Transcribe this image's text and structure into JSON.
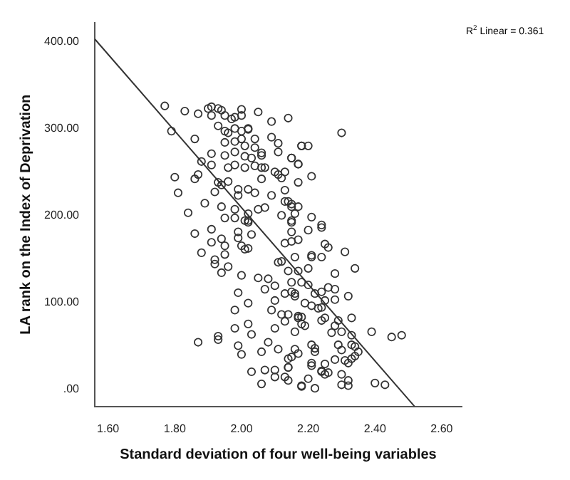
{
  "chart_data": {
    "type": "scatter",
    "xlabel": "Standard deviation of four well-being variables",
    "ylabel": "LA rank on the Index of Deprivation",
    "annotations": [
      "R$^{2}$ Linear = 0.361"
    ],
    "xlim": [
      1.56,
      2.66
    ],
    "ylim": [
      -20,
      422
    ],
    "xticks": [
      {
        "value": 1.6,
        "label": "1.60"
      },
      {
        "value": 1.8,
        "label": "1.80"
      },
      {
        "value": 2.0,
        "label": "2.00"
      },
      {
        "value": 2.2,
        "label": "2.20"
      },
      {
        "value": 2.4,
        "label": "2.40"
      },
      {
        "value": 2.6,
        "label": "2.60"
      }
    ],
    "yticks": [
      {
        "value": 0,
        "label": ".00"
      },
      {
        "value": 100,
        "label": "100.00"
      },
      {
        "value": 200,
        "label": "200.00"
      },
      {
        "value": 300,
        "label": "300.00"
      },
      {
        "value": 400,
        "label": "400.00"
      }
    ],
    "grid": false,
    "legend": false,
    "marker": "circle",
    "series": [
      {
        "type": "scatter",
        "color": "#333333",
        "x": [
          1.77,
          1.83,
          1.87,
          1.9,
          1.91,
          1.93,
          1.94,
          1.91,
          1.95,
          1.97,
          1.98,
          2.0,
          2.0,
          2.02,
          2.05,
          2.09,
          2.14,
          1.79,
          1.86,
          1.93,
          1.95,
          1.96,
          1.98,
          2.0,
          2.02,
          1.95,
          1.98,
          2.0,
          2.01,
          2.04,
          2.04,
          2.06,
          2.09,
          2.11,
          2.11,
          2.15,
          2.17,
          2.18,
          1.91,
          1.95,
          1.98,
          2.01,
          2.03,
          2.06,
          2.07,
          2.1,
          2.11,
          2.13,
          1.88,
          1.91,
          1.96,
          1.98,
          2.01,
          2.04,
          2.06,
          1.8,
          1.86,
          1.87,
          1.93,
          1.94,
          1.96,
          1.99,
          2.02,
          2.04,
          2.06,
          2.09,
          2.12,
          2.13,
          1.81,
          1.92,
          1.99,
          1.89,
          1.94,
          1.98,
          2.02,
          2.05,
          2.07,
          2.13,
          2.15,
          2.16,
          1.84,
          1.95,
          1.98,
          2.02,
          2.12,
          2.15,
          2.3,
          2.18,
          2.2,
          2.15,
          2.17,
          2.17,
          2.21,
          2.14,
          2.15,
          2.17,
          2.21,
          2.24,
          1.86,
          1.88,
          1.91,
          1.91,
          1.92,
          1.92,
          1.94,
          1.94,
          1.95,
          1.95,
          1.96,
          1.99,
          1.99,
          2.0,
          2.0,
          2.01,
          2.02,
          2.03,
          2.01,
          2.02,
          1.98,
          1.99,
          2.02,
          1.98,
          2.02,
          2.03,
          1.99,
          2.0,
          1.87,
          1.93,
          1.93,
          2.03,
          2.06,
          2.07,
          2.06,
          2.08,
          2.1,
          2.11,
          2.1,
          2.1,
          2.14,
          2.14,
          2.15,
          2.16,
          2.18,
          2.05,
          2.07,
          2.08,
          2.1,
          2.11,
          2.1,
          2.09,
          2.12,
          2.14,
          2.13,
          2.16,
          2.12,
          2.14,
          2.15,
          2.16,
          2.17,
          2.24,
          2.2,
          2.25,
          2.26,
          2.31,
          2.24,
          2.21,
          2.21,
          2.34,
          2.28,
          2.26,
          2.28,
          2.32,
          2.24,
          2.25,
          2.22,
          2.28,
          2.21,
          2.24,
          2.23,
          2.19,
          2.33,
          2.29,
          2.25,
          2.24,
          2.28,
          2.27,
          2.3,
          2.33,
          2.39,
          2.45,
          2.48,
          2.29,
          2.3,
          2.33,
          2.34,
          2.35,
          2.31,
          2.33,
          2.34,
          2.32,
          2.28,
          2.25,
          2.26,
          2.24,
          2.3,
          2.3,
          2.32,
          2.32,
          2.4,
          2.43,
          2.22,
          2.18,
          2.21,
          2.22,
          2.22,
          2.18,
          2.18,
          2.19,
          2.17,
          2.17,
          2.14,
          2.14,
          2.13,
          2.21,
          2.21,
          2.2,
          2.25,
          2.24,
          2.16,
          2.17,
          2.18,
          2.2,
          2.2,
          2.15,
          2.13,
          2.16,
          2.13,
          2.15,
          2.17,
          2.15,
          2.15
        ],
        "values": [
          326,
          320,
          317,
          323,
          325,
          323,
          321,
          315,
          315,
          311,
          313,
          322,
          315,
          300,
          319,
          308,
          312,
          297,
          288,
          303,
          297,
          295,
          300,
          297,
          299,
          284,
          285,
          288,
          280,
          288,
          278,
          272,
          290,
          283,
          273,
          266,
          259,
          280,
          271,
          269,
          273,
          268,
          266,
          269,
          255,
          250,
          247,
          250,
          262,
          258,
          255,
          258,
          255,
          257,
          255,
          244,
          242,
          247,
          238,
          235,
          239,
          230,
          230,
          226,
          242,
          223,
          243,
          229,
          226,
          227,
          223,
          214,
          210,
          207,
          202,
          207,
          209,
          216,
          210,
          202,
          203,
          197,
          197,
          194,
          200,
          194,
          295,
          280,
          280,
          266,
          259,
          238,
          245,
          216,
          213,
          210,
          198,
          189,
          179,
          157,
          184,
          169,
          149,
          144,
          134,
          173,
          165,
          155,
          141,
          181,
          174,
          131,
          165,
          161,
          162,
          178,
          194,
          192,
          91,
          111,
          99,
          70,
          75,
          63,
          50,
          40,
          54,
          61,
          57,
          20,
          6,
          22,
          43,
          54,
          70,
          46,
          22,
          14,
          25,
          10,
          37,
          46,
          4,
          128,
          115,
          127,
          119,
          146,
          102,
          91,
          86,
          86,
          78,
          66,
          147,
          136,
          112,
          107,
          84,
          186,
          183,
          167,
          163,
          158,
          152,
          154,
          152,
          139,
          133,
          117,
          115,
          107,
          112,
          102,
          110,
          103,
          96,
          94,
          93,
          99,
          82,
          79,
          82,
          79,
          73,
          65,
          66,
          62,
          66,
          60,
          62,
          51,
          45,
          51,
          49,
          43,
          33,
          35,
          38,
          30,
          34,
          29,
          19,
          21,
          17,
          5,
          10,
          4,
          7,
          5,
          1,
          3,
          51,
          47,
          43,
          83,
          75,
          73,
          82,
          41,
          35,
          25,
          14,
          27,
          30,
          12,
          17,
          20,
          152,
          136,
          123,
          120,
          139,
          123,
          110,
          110,
          168,
          170,
          172,
          181,
          192
        ]
      },
      {
        "type": "line",
        "color": "#333333",
        "marker": "none",
        "x": [
          1.56,
          2.519
        ],
        "values": [
          403,
          -20
        ]
      }
    ]
  }
}
